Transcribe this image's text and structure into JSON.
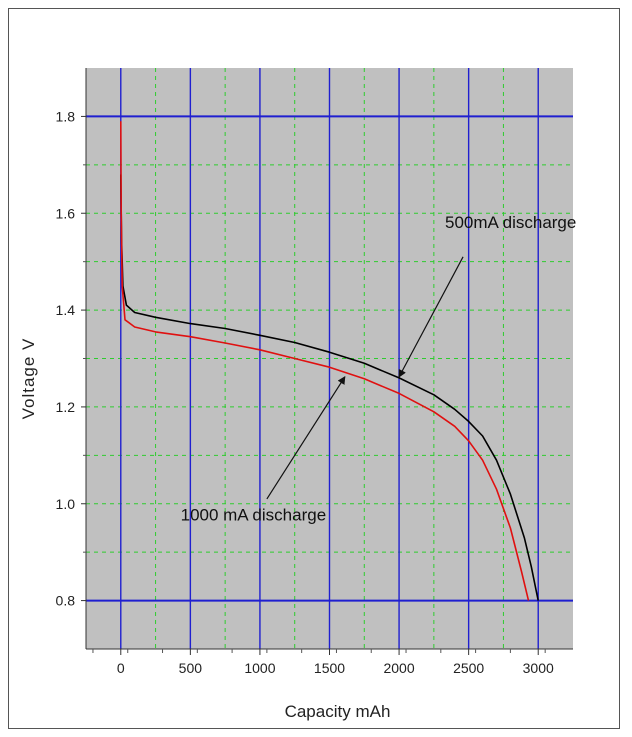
{
  "chart_data": {
    "type": "line",
    "xlabel": "Capacity mAh",
    "ylabel": "Voltage V",
    "xlim": [
      -250,
      3250
    ],
    "ylim": [
      0.7,
      1.9
    ],
    "x_ticks": [
      0,
      500,
      1000,
      1500,
      2000,
      2500,
      3000
    ],
    "y_ticks": [
      0.8,
      1.0,
      1.2,
      1.4,
      1.6,
      1.8
    ],
    "x_tick_labels": [
      "0",
      "500",
      "1000",
      "1500",
      "2000",
      "2500",
      "3000"
    ],
    "y_tick_labels": [
      "0.8",
      "1.0",
      "1.2",
      "1.4",
      "1.6",
      "1.8"
    ],
    "major_grid_x": [
      0,
      500,
      1000,
      1500,
      2000,
      2500,
      3000
    ],
    "major_grid_y": [
      0.8,
      1.8
    ],
    "minor_grid_y": [
      0.9,
      1.0,
      1.1,
      1.2,
      1.3,
      1.4,
      1.5,
      1.6,
      1.7
    ],
    "minor_grid_x": [
      250,
      750,
      1250,
      1750,
      2250,
      2750
    ],
    "grid": true,
    "background": "#c0c0c0",
    "colors": {
      "major_grid": "#1f1fd0",
      "minor_grid": "#2ecc2e"
    },
    "series": [
      {
        "color": "#000000",
        "points": [
          [
            0,
            1.68
          ],
          [
            5,
            1.55
          ],
          [
            15,
            1.45
          ],
          [
            40,
            1.41
          ],
          [
            100,
            1.395
          ],
          [
            250,
            1.385
          ],
          [
            500,
            1.372
          ],
          [
            750,
            1.362
          ],
          [
            1000,
            1.348
          ],
          [
            1250,
            1.333
          ],
          [
            1500,
            1.313
          ],
          [
            1750,
            1.29
          ],
          [
            2000,
            1.26
          ],
          [
            2250,
            1.225
          ],
          [
            2400,
            1.195
          ],
          [
            2500,
            1.17
          ],
          [
            2600,
            1.14
          ],
          [
            2700,
            1.09
          ],
          [
            2800,
            1.02
          ],
          [
            2900,
            0.93
          ],
          [
            2950,
            0.87
          ],
          [
            3000,
            0.8
          ]
        ]
      },
      {
        "color": "#e01010",
        "points": [
          [
            0,
            1.79
          ],
          [
            3,
            1.6
          ],
          [
            10,
            1.45
          ],
          [
            30,
            1.38
          ],
          [
            100,
            1.365
          ],
          [
            250,
            1.355
          ],
          [
            500,
            1.345
          ],
          [
            750,
            1.332
          ],
          [
            1000,
            1.318
          ],
          [
            1250,
            1.3
          ],
          [
            1500,
            1.282
          ],
          [
            1750,
            1.258
          ],
          [
            2000,
            1.228
          ],
          [
            2250,
            1.19
          ],
          [
            2400,
            1.16
          ],
          [
            2500,
            1.13
          ],
          [
            2600,
            1.09
          ],
          [
            2700,
            1.03
          ],
          [
            2800,
            0.95
          ],
          [
            2880,
            0.86
          ],
          [
            2930,
            0.8
          ]
        ]
      }
    ],
    "annotations": [
      {
        "text": "500mA discharge",
        "x": 2330,
        "y": 1.57,
        "arrow_to": [
          2000,
          1.262
        ],
        "arrow_from": [
          2460,
          1.51
        ]
      },
      {
        "text": "1000 mA discharge",
        "x": 430,
        "y": 0.965,
        "arrow_to": [
          1610,
          1.262
        ],
        "arrow_from": [
          1050,
          1.01
        ]
      }
    ]
  }
}
